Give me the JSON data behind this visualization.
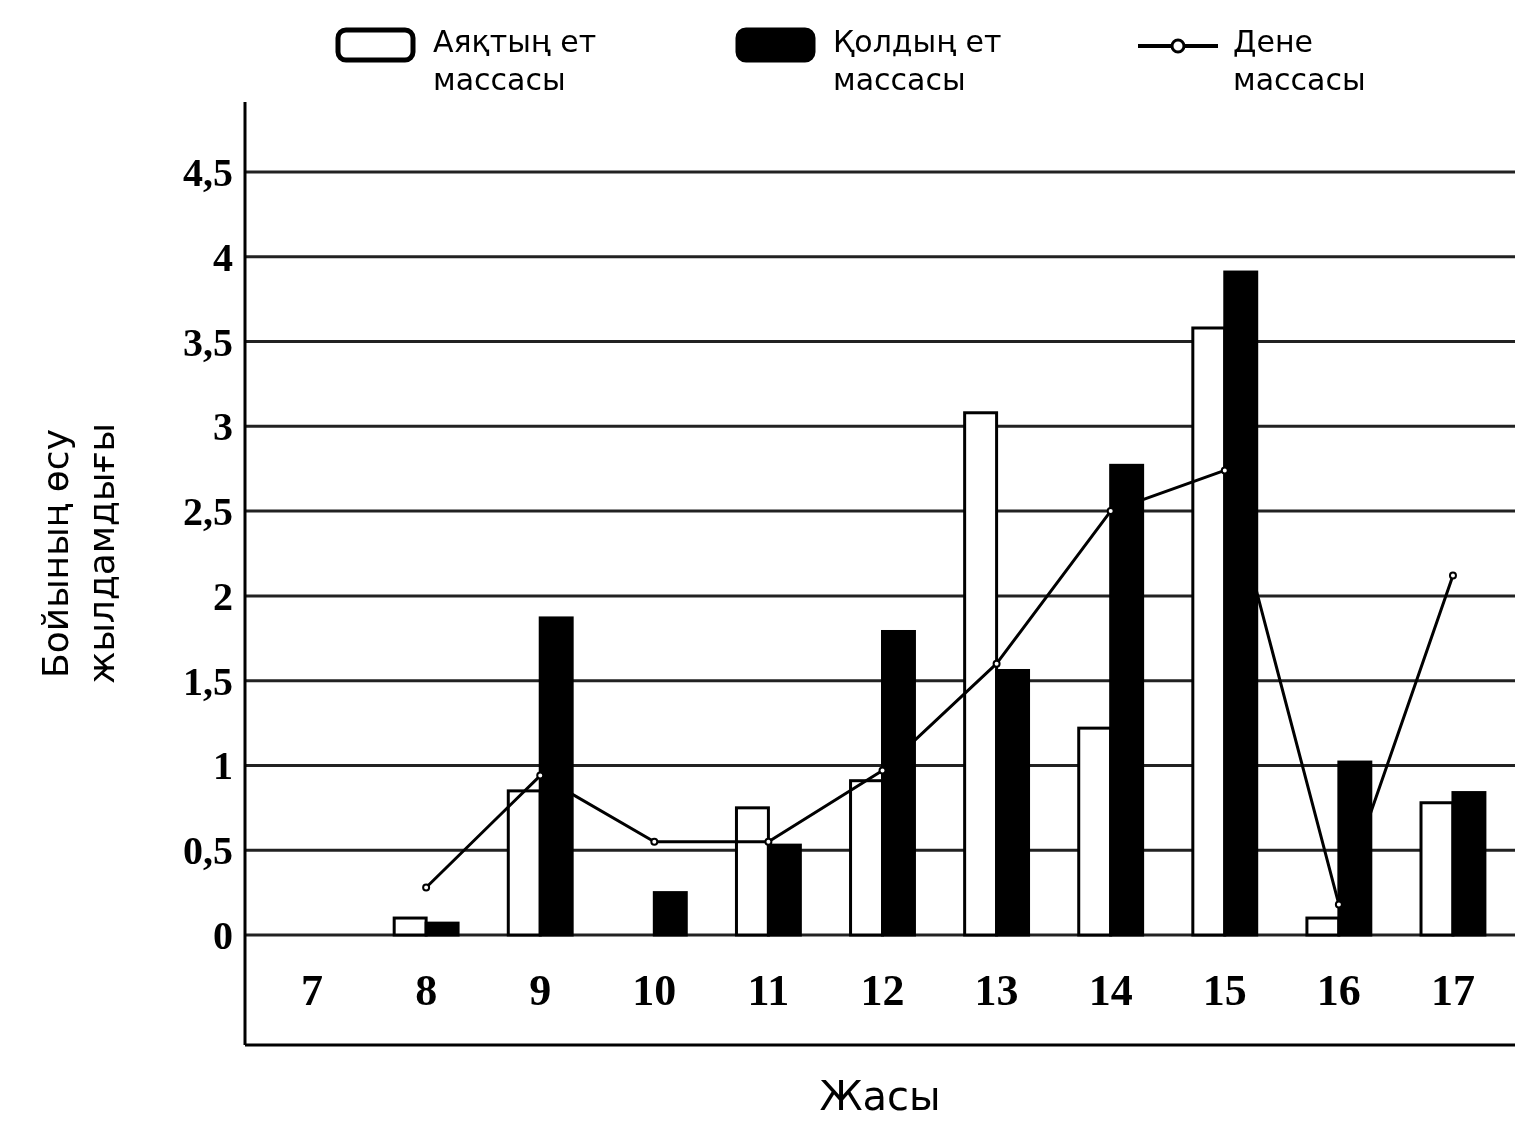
{
  "chart_data": {
    "type": "bar",
    "xlabel": "Жасы",
    "ylabel": "Бойының өсу жылдамдығы",
    "categories": [
      "7",
      "8",
      "9",
      "10",
      "11",
      "12",
      "13",
      "14",
      "15",
      "16",
      "17"
    ],
    "series": [
      {
        "name": "Аяқтың ет массасы",
        "color": "#ffffff",
        "values": [
          0,
          0.1,
          0.85,
          0,
          0.75,
          0.91,
          3.08,
          1.22,
          3.58,
          0.1,
          0.78
        ]
      },
      {
        "name": "Қолдың ет массасы",
        "color": "#000000",
        "values": [
          0,
          0.07,
          1.87,
          0.25,
          0.53,
          1.79,
          1.56,
          2.77,
          3.91,
          1.02,
          0.84
        ]
      },
      {
        "name": "Дене массасы",
        "type": "line",
        "color": "#000000",
        "values": [
          null,
          0.28,
          0.94,
          0.55,
          0.55,
          0.97,
          1.6,
          2.5,
          2.74,
          0.18,
          2.12
        ]
      }
    ],
    "ylim": [
      0,
      4.5
    ],
    "yticks": [
      0,
      {
        "value": 0.5,
        "label": "0,5"
      },
      1,
      {
        "value": 1.5,
        "label": "1,5"
      },
      2,
      {
        "value": 2.5,
        "label": "2,5"
      },
      3,
      {
        "value": 3.5,
        "label": "3,5"
      },
      4,
      {
        "value": 4.5,
        "label": "4,5"
      }
    ],
    "grid": "y",
    "legend": "top",
    "marker": "circle",
    "line_style": "solid"
  }
}
